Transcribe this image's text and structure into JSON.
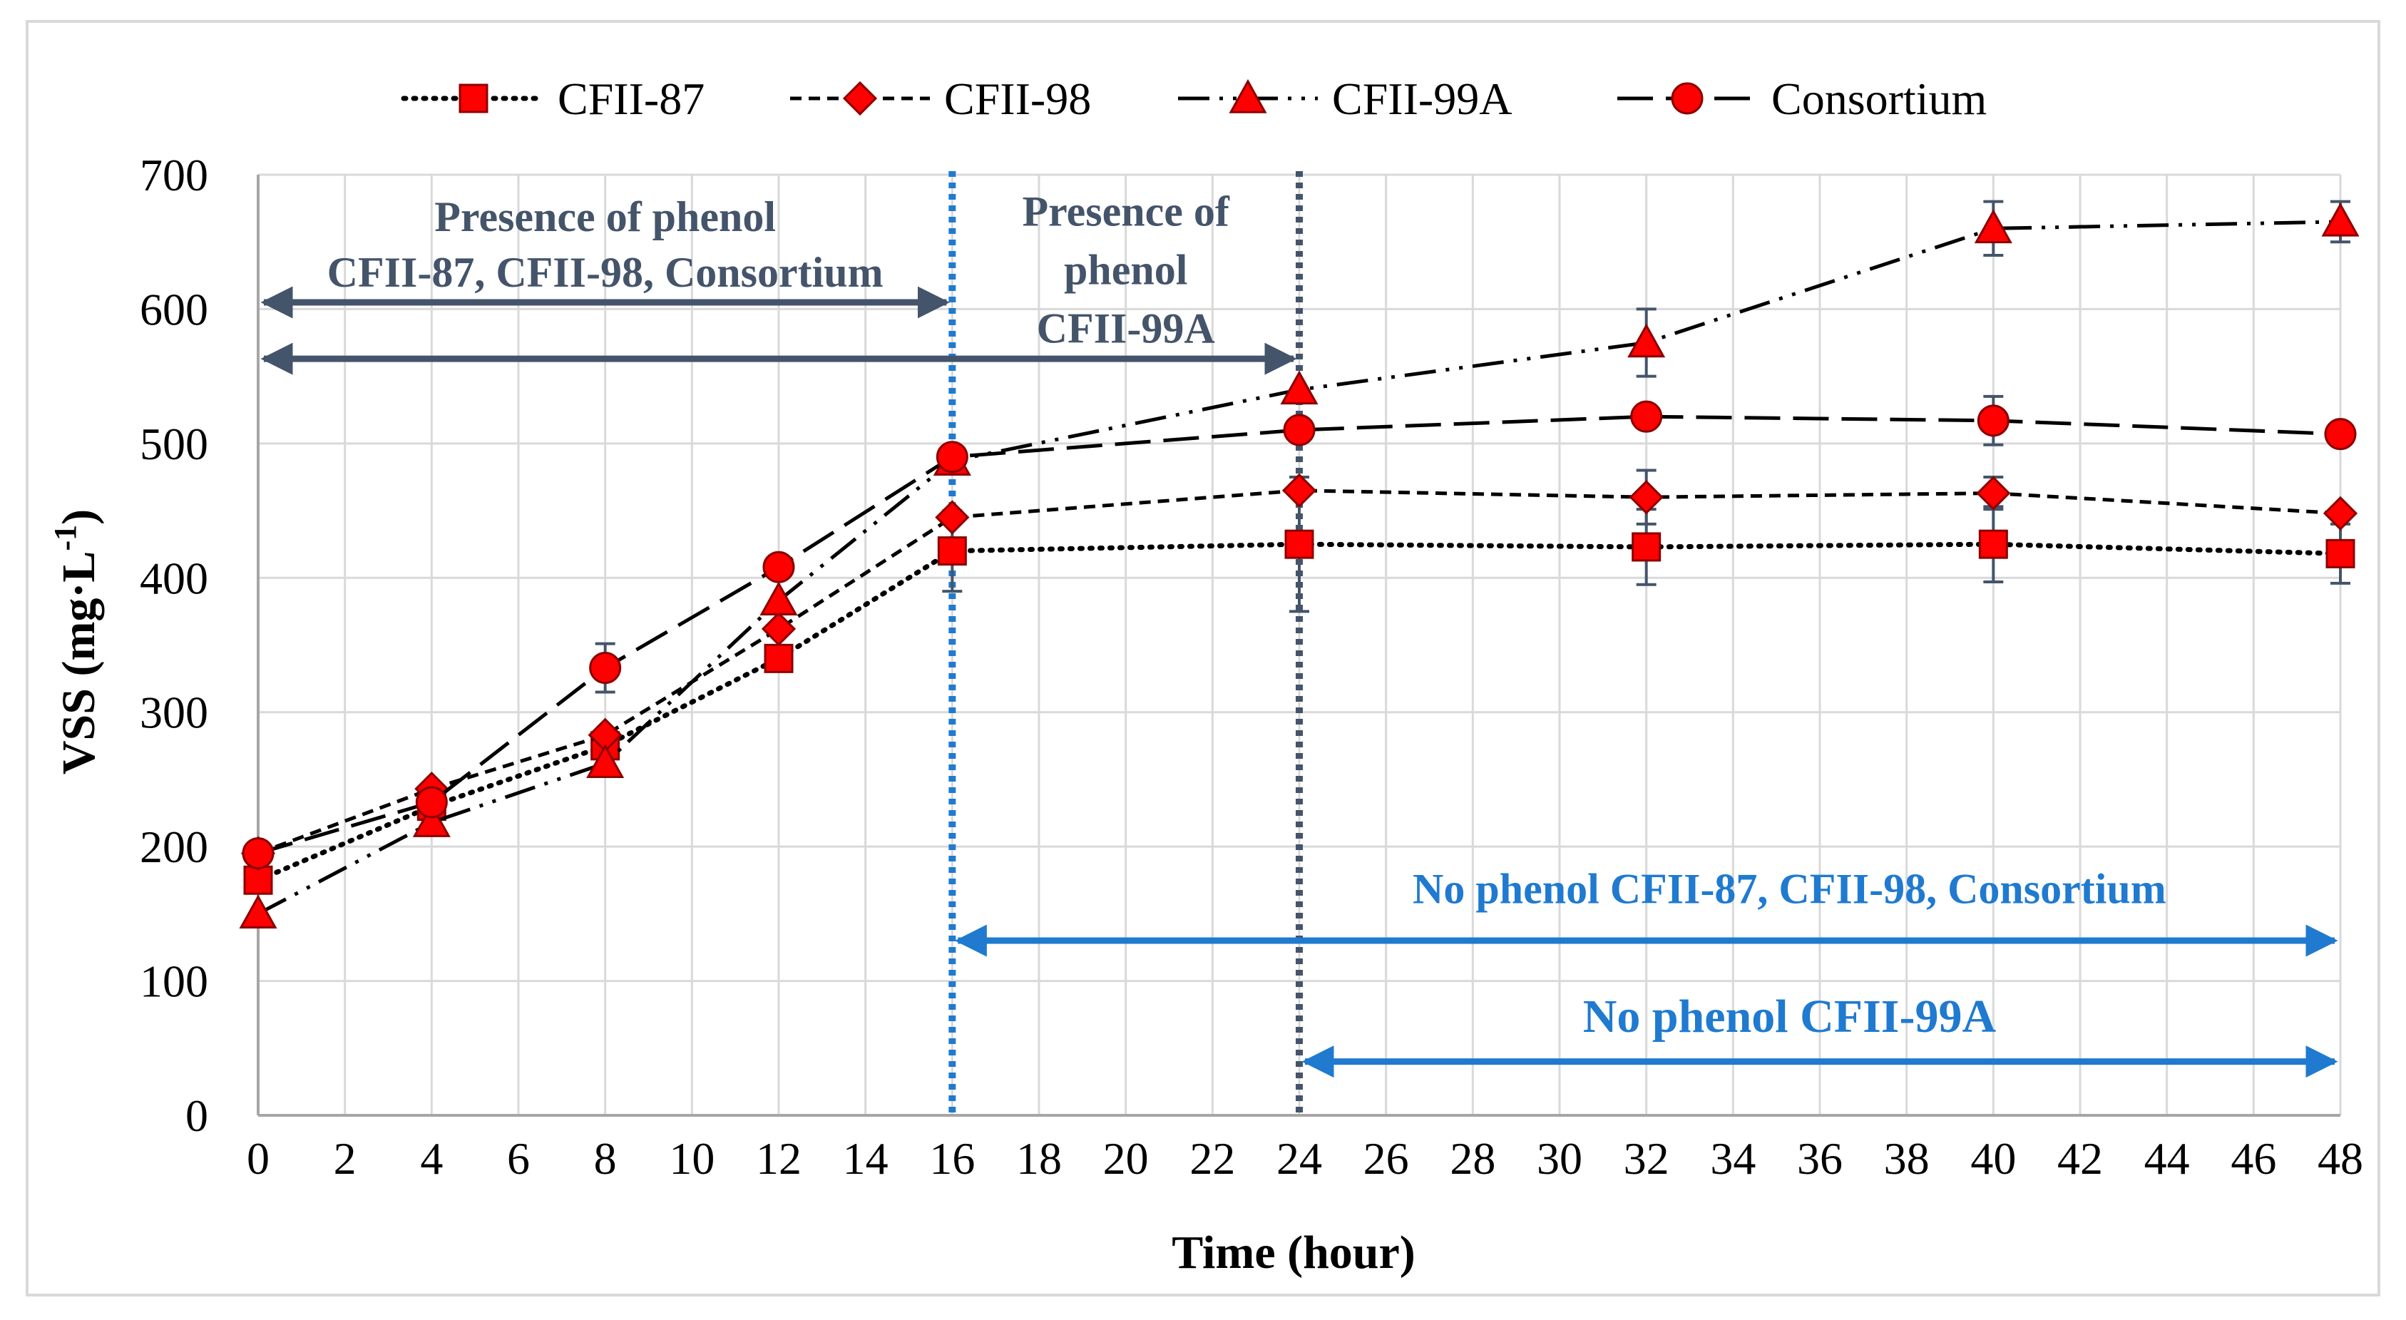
{
  "chart_data": {
    "type": "line",
    "title": "",
    "xlabel": "Time (hour)",
    "ylabel_main": "VSS (mg·L",
    "ylabel_sup": "-1",
    "ylabel_close": ")",
    "xlim": [
      0,
      48
    ],
    "ylim": [
      0,
      700
    ],
    "xticks": [
      0,
      2,
      4,
      6,
      8,
      10,
      12,
      14,
      16,
      18,
      20,
      22,
      24,
      26,
      28,
      30,
      32,
      34,
      36,
      38,
      40,
      42,
      44,
      46,
      48
    ],
    "yticks": [
      0,
      100,
      200,
      300,
      400,
      500,
      600,
      700
    ],
    "grid": true,
    "legend_position": "top",
    "x": [
      0,
      4,
      8,
      12,
      16,
      24,
      32,
      40,
      48
    ],
    "series": [
      {
        "name": "CFII-87",
        "marker": "square",
        "dash": "dotted",
        "values": [
          175,
          230,
          275,
          340,
          420,
          425,
          423,
          425,
          418
        ],
        "errors": [
          0,
          0,
          0,
          0,
          30,
          50,
          28,
          28,
          22
        ]
      },
      {
        "name": "CFII-98",
        "marker": "diamond",
        "dash": "dashed",
        "values": [
          195,
          243,
          283,
          362,
          445,
          465,
          460,
          463,
          448
        ],
        "errors": [
          0,
          0,
          0,
          0,
          0,
          0,
          20,
          12,
          0
        ]
      },
      {
        "name": "CFII-99A",
        "marker": "triangle",
        "dash": "dash-dot",
        "values": [
          150,
          218,
          262,
          383,
          487,
          540,
          575,
          660,
          665
        ],
        "errors": [
          0,
          0,
          0,
          0,
          0,
          0,
          25,
          20,
          15
        ]
      },
      {
        "name": "Consortium",
        "marker": "circle",
        "dash": "long-dash",
        "values": [
          195,
          233,
          333,
          408,
          490,
          510,
          520,
          517,
          507
        ],
        "errors": [
          0,
          0,
          18,
          0,
          0,
          0,
          0,
          18,
          0
        ]
      }
    ],
    "vlines": [
      {
        "x": 16,
        "color": "#1f7ad0",
        "style": "dotted"
      },
      {
        "x": 24,
        "color": "#44546a",
        "style": "dotted"
      }
    ],
    "annotations": [
      {
        "lines": [
          "Presence of phenol",
          "CFII-87, CFII-98, Consortium"
        ],
        "color": "#44546a"
      },
      {
        "lines": [
          "Presence of",
          "phenol",
          "CFII-99A"
        ],
        "color": "#44546a"
      },
      {
        "lines": [
          "No phenol CFII-87, CFII-98, Consortium"
        ],
        "color": "#1f7ad0"
      },
      {
        "lines": [
          "No phenol CFII-99A"
        ],
        "color": "#1f7ad0"
      }
    ],
    "arrows": [
      {
        "from": 0,
        "to": 16,
        "color": "#44546a"
      },
      {
        "from": 0,
        "to": 24,
        "color": "#44546a"
      },
      {
        "from": 16,
        "to": 48,
        "color": "#1f7ad0"
      },
      {
        "from": 24,
        "to": 48,
        "color": "#1f7ad0"
      }
    ],
    "colors": {
      "marker_fill": "#ff0000",
      "marker_stroke": "#8b0000",
      "line": "#000000",
      "grid": "#d9d9d9",
      "axis": "#a6a6a6",
      "error_bar": "#44546a",
      "frame": "#d9d9d9"
    }
  }
}
